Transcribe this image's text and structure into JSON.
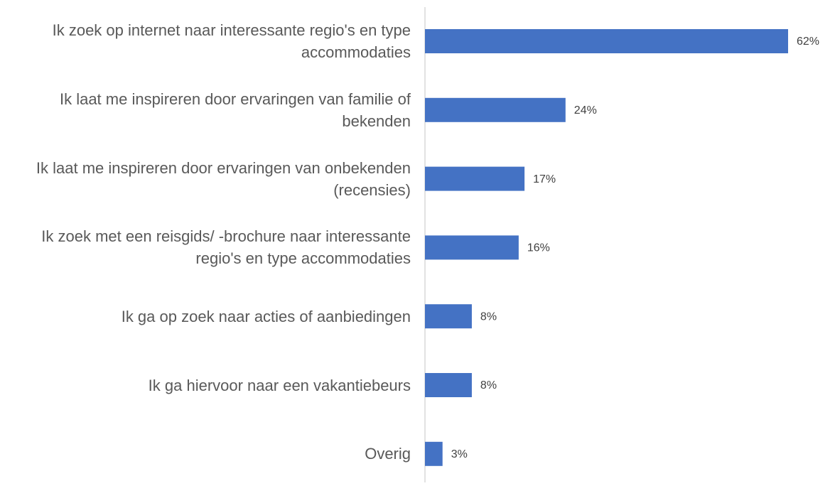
{
  "chart_data": {
    "type": "bar",
    "orientation": "horizontal",
    "categories": [
      "Ik zoek op internet naar interessante regio's en type accommodaties",
      "Ik laat me inspireren door ervaringen van familie of bekenden",
      "Ik laat me inspireren door ervaringen van onbekenden (recensies)",
      "Ik zoek met een reisgids/ -brochure naar interessante regio's en type accommodaties",
      "Ik ga op zoek naar acties of aanbiedingen",
      "Ik ga hiervoor naar een vakantiebeurs",
      "Overig"
    ],
    "values": [
      62,
      24,
      17,
      16,
      8,
      8,
      3
    ],
    "value_labels": [
      "62%",
      "24%",
      "17%",
      "16%",
      "8%",
      "8%",
      "3%"
    ],
    "color": "#4472c4"
  }
}
